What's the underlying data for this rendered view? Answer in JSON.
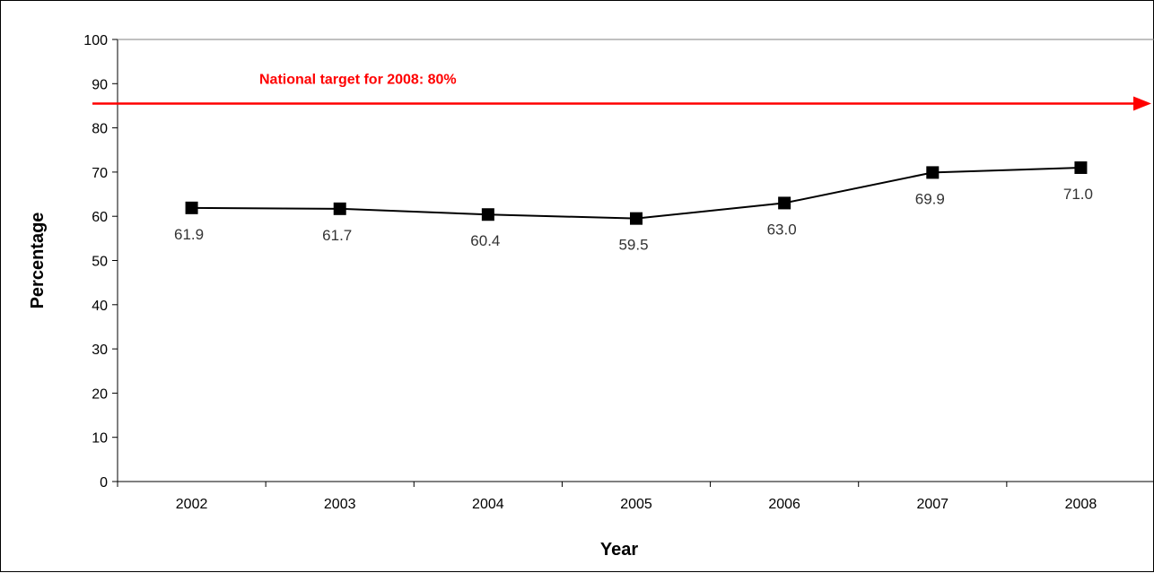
{
  "chart_data": {
    "type": "line",
    "title": "",
    "xlabel": "Year",
    "ylabel": "Percentage",
    "categories": [
      "2002",
      "2003",
      "2004",
      "2005",
      "2006",
      "2007",
      "2008"
    ],
    "series": [
      {
        "values": [
          61.9,
          61.7,
          60.4,
          59.5,
          63.0,
          69.9,
          71.0
        ],
        "data_labels": [
          "61.9",
          "61.7",
          "60.4",
          "59.5",
          "63.0",
          "69.9",
          "71.0"
        ],
        "color": "#000000",
        "marker": "square"
      }
    ],
    "ylim": [
      0,
      100
    ],
    "yticks": [
      "0",
      "10",
      "20",
      "30",
      "40",
      "50",
      "60",
      "70",
      "80",
      "90",
      "100"
    ],
    "grid": false,
    "legend": "none",
    "annotation": {
      "text": "National target for 2008: 80%",
      "color": "#ff0000",
      "arrow_y": 85.5
    }
  }
}
